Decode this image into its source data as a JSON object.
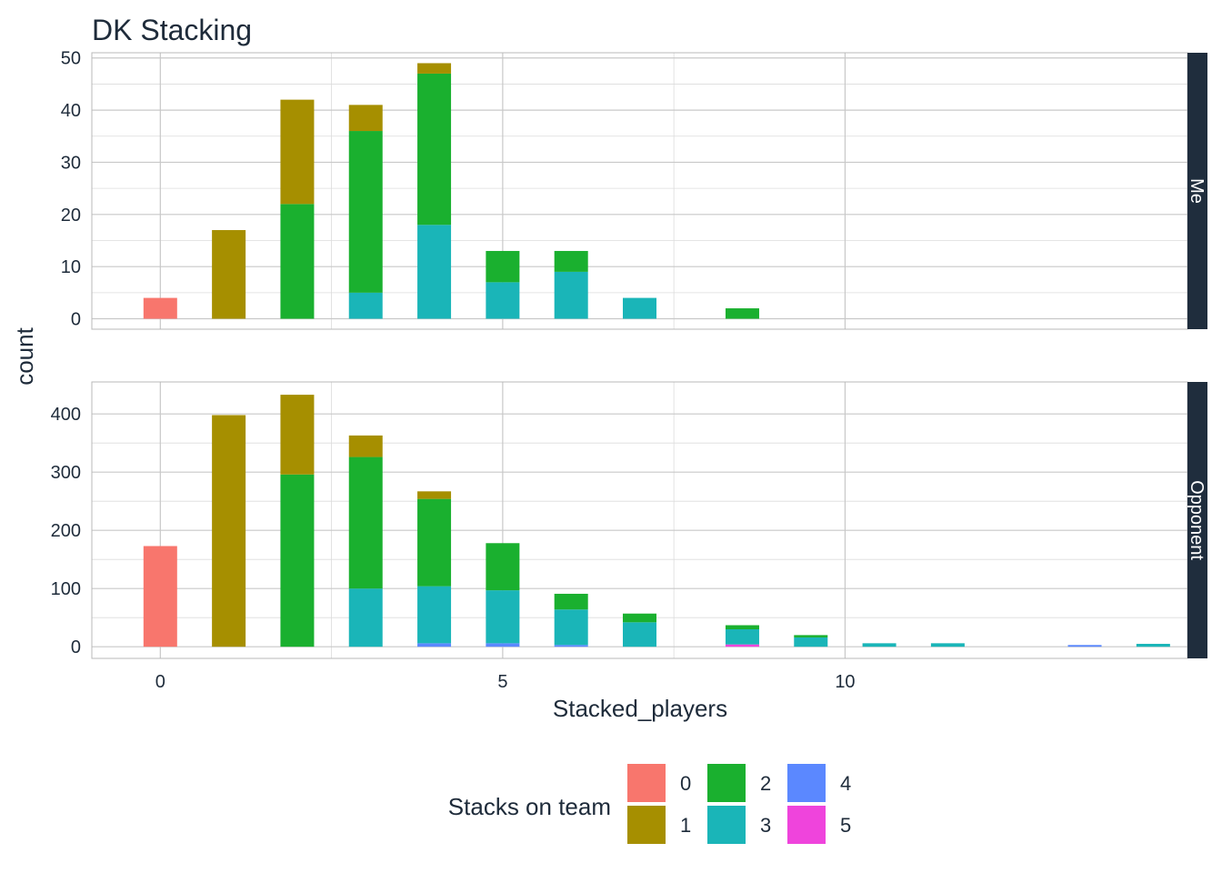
{
  "title": "DK Stacking",
  "chart_data": {
    "type": "bar",
    "stacked": true,
    "title": "DK Stacking",
    "xlabel": "Stacked_players",
    "ylabel": "count",
    "x_ticks": [
      0,
      5,
      10
    ],
    "xlim": [
      -1,
      15
    ],
    "legend": {
      "title": "Stacks on team",
      "position": "bottom",
      "entries": [
        {
          "label": "0",
          "color": "#F8766D"
        },
        {
          "label": "1",
          "color": "#A68F00"
        },
        {
          "label": "2",
          "color": "#1AB02F"
        },
        {
          "label": "3",
          "color": "#1AB5B8"
        },
        {
          "label": "4",
          "color": "#5B88FF"
        },
        {
          "label": "5",
          "color": "#EF44DC"
        }
      ]
    },
    "panels": [
      {
        "label": "Me",
        "ylim": [
          -2,
          51
        ],
        "y_ticks": [
          0,
          10,
          20,
          30,
          40,
          50
        ],
        "bars": [
          {
            "x": 0,
            "segments": {
              "0": 4
            }
          },
          {
            "x": 1,
            "segments": {
              "1": 17
            }
          },
          {
            "x": 2,
            "segments": {
              "2": 22,
              "1": 20
            }
          },
          {
            "x": 3,
            "segments": {
              "3": 5,
              "2": 31,
              "1": 5
            }
          },
          {
            "x": 4,
            "segments": {
              "3": 18,
              "2": 29,
              "1": 2
            }
          },
          {
            "x": 5,
            "segments": {
              "3": 7,
              "2": 6
            }
          },
          {
            "x": 6,
            "segments": {
              "3": 9,
              "2": 4
            }
          },
          {
            "x": 7,
            "segments": {
              "3": 4
            }
          },
          {
            "x": 8.5,
            "segments": {
              "2": 2
            }
          }
        ]
      },
      {
        "label": "Opponent",
        "ylim": [
          -20,
          455
        ],
        "y_ticks": [
          0,
          100,
          200,
          300,
          400
        ],
        "bars": [
          {
            "x": 0,
            "segments": {
              "0": 173
            }
          },
          {
            "x": 1,
            "segments": {
              "1": 398
            }
          },
          {
            "x": 2,
            "segments": {
              "2": 296,
              "1": 137
            }
          },
          {
            "x": 3,
            "segments": {
              "3": 100,
              "2": 226,
              "1": 37
            }
          },
          {
            "x": 4,
            "segments": {
              "4": 6,
              "3": 98,
              "2": 150,
              "1": 13
            }
          },
          {
            "x": 5,
            "segments": {
              "4": 6,
              "3": 91,
              "2": 81
            }
          },
          {
            "x": 6,
            "segments": {
              "4": 3,
              "3": 61,
              "2": 27
            }
          },
          {
            "x": 7,
            "segments": {
              "3": 42,
              "2": 15
            }
          },
          {
            "x": 8.5,
            "segments": {
              "5": 4,
              "3": 26,
              "2": 7
            }
          },
          {
            "x": 9.5,
            "segments": {
              "3": 16,
              "2": 4
            }
          },
          {
            "x": 10.5,
            "segments": {
              "3": 6
            }
          },
          {
            "x": 11.5,
            "segments": {
              "3": 6
            }
          },
          {
            "x": 13.5,
            "segments": {
              "4": 3
            }
          },
          {
            "x": 14.5,
            "segments": {
              "3": 5
            }
          }
        ]
      }
    ]
  }
}
